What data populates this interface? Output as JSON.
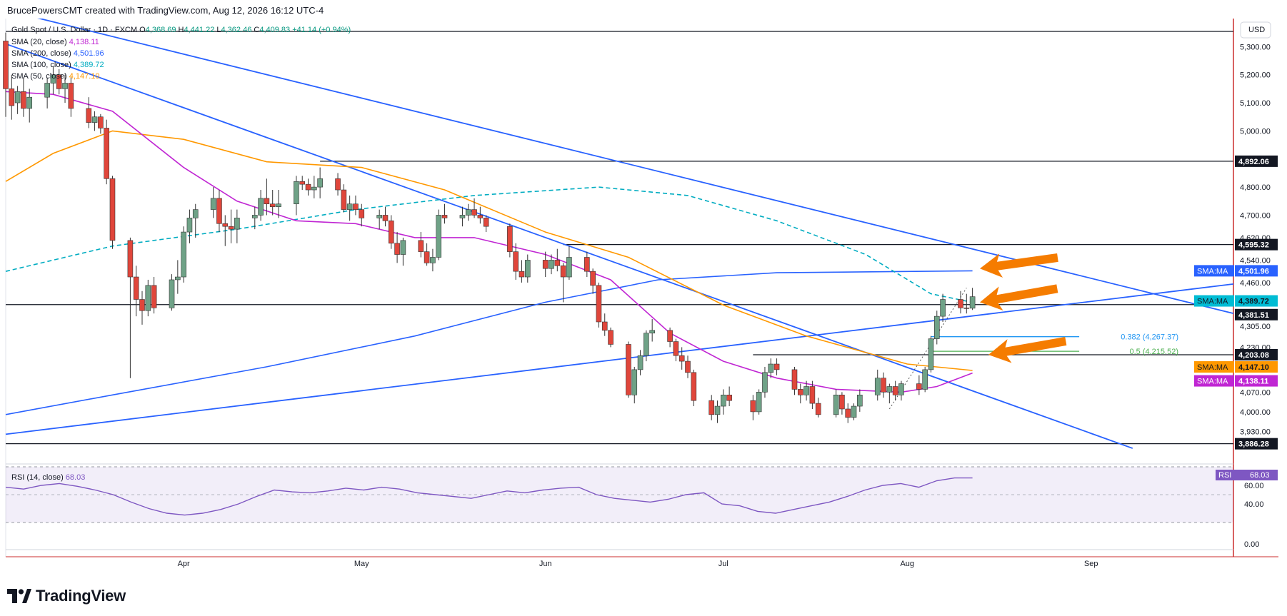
{
  "header": {
    "credit": "BrucePowersCMT created with TradingView.com, Aug 12, 2026 16:12 UTC-4"
  },
  "legend": {
    "symbol": "Gold Spot / U.S. Dollar · 1D · FXCM",
    "o_label": "O",
    "o_value": "4,368.69",
    "h_label": "H",
    "h_value": "4,441.22",
    "l_label": "L",
    "l_value": "4,362.46",
    "c_label": "C",
    "c_value": "4,409.83",
    "change": "+41.14 (+0.94%)",
    "indicators": [
      {
        "label": "SMA (20, close)",
        "value": "4,138.11",
        "color": "#c026d3"
      },
      {
        "label": "SMA (200, close)",
        "value": "4,501.96",
        "color": "#2962ff"
      },
      {
        "label": "SMA (100, close)",
        "value": "4,389.72",
        "color": "#00acc1"
      },
      {
        "label": "SMA (50, close)",
        "value": "4,147.10",
        "color": "#ff9800"
      }
    ]
  },
  "axis": {
    "currency": "USD",
    "price_ticks": [
      "5,300.00",
      "5,200.00",
      "5,100.00",
      "5,000.00",
      "4,800.00",
      "4,700.00",
      "4,620.00",
      "4,540.00",
      "4,460.00",
      "4,305.00",
      "4,230.00",
      "4,070.00",
      "4,000.00",
      "3,930.00"
    ],
    "months": [
      "Apr",
      "May",
      "Jun",
      "Jul",
      "Aug",
      "Sep"
    ],
    "rsi_ticks": [
      "60.00",
      "40.00",
      "0.00"
    ]
  },
  "price_tags": [
    {
      "text": "4,892.06",
      "style": "black"
    },
    {
      "text": "4,595.32",
      "style": "black"
    },
    {
      "text": "4,501.96",
      "style": "blue",
      "prefix": "SMA:MA"
    },
    {
      "text": "4,389.72",
      "style": "teal",
      "prefix": "SMA:MA"
    },
    {
      "text": "4,381.51",
      "style": "black"
    },
    {
      "text": "4,203.08",
      "style": "black"
    },
    {
      "text": "4,147.10",
      "style": "orange",
      "prefix": "SMA:MA"
    },
    {
      "text": "4,138.11",
      "style": "purple",
      "prefix": "SMA:MA"
    },
    {
      "text": "3,886.28",
      "style": "black"
    }
  ],
  "fib": [
    {
      "text": "0.382 (4,267.37)",
      "color": "#2196f3"
    },
    {
      "text": "0.5 (4,215.52)",
      "color": "#4caf50"
    }
  ],
  "rsi": {
    "label": "RSI (14, close)",
    "value": "68.03",
    "tag_prefix": "RSI",
    "color": "#7e57c2"
  },
  "brand": {
    "name": "TradingView"
  },
  "colors": {
    "up": "#6fa287",
    "down": "#e0463b",
    "sma20": "#c026d3",
    "sma50": "#ff9800",
    "sma100": "#00acc1",
    "sma200": "#2962ff",
    "trend": "#2962ff",
    "arrow": "#f57c00"
  },
  "chart_data": {
    "type": "candlestick",
    "x_range": [
      "2026-03-02",
      "2026-09-25"
    ],
    "y_range": [
      3860,
      5400
    ],
    "candles": [
      [
        "2026-03-02",
        5320,
        5350,
        5050,
        5150
      ],
      [
        "2026-03-03",
        5150,
        5200,
        5040,
        5090
      ],
      [
        "2026-03-04",
        5100,
        5160,
        5060,
        5140
      ],
      [
        "2026-03-05",
        5140,
        5190,
        5050,
        5080
      ],
      [
        "2026-03-06",
        5080,
        5150,
        5030,
        5120
      ],
      [
        "2026-03-09",
        5120,
        5190,
        5080,
        5170
      ],
      [
        "2026-03-10",
        5170,
        5230,
        5130,
        5200
      ],
      [
        "2026-03-11",
        5200,
        5220,
        5130,
        5150
      ],
      [
        "2026-03-12",
        5150,
        5200,
        5100,
        5170
      ],
      [
        "2026-03-13",
        5170,
        5190,
        5050,
        5080
      ],
      [
        "2026-03-16",
        5080,
        5120,
        5010,
        5030
      ],
      [
        "2026-03-17",
        5030,
        5070,
        5000,
        5050
      ],
      [
        "2026-03-18",
        5050,
        5060,
        4990,
        5010
      ],
      [
        "2026-03-19",
        5010,
        5040,
        4810,
        4830
      ],
      [
        "2026-03-20",
        4830,
        4840,
        4580,
        4610
      ],
      [
        "2026-03-23",
        4610,
        4620,
        4120,
        4480
      ],
      [
        "2026-03-24",
        4480,
        4520,
        4340,
        4400
      ],
      [
        "2026-03-25",
        4400,
        4430,
        4310,
        4360
      ],
      [
        "2026-03-26",
        4360,
        4470,
        4340,
        4450
      ],
      [
        "2026-03-27",
        4450,
        4480,
        4350,
        4370
      ],
      [
        "2026-03-30",
        4370,
        4490,
        4360,
        4470
      ],
      [
        "2026-03-31",
        4470,
        4540,
        4420,
        4480
      ],
      [
        "2026-04-01",
        4480,
        4660,
        4460,
        4640
      ],
      [
        "2026-04-02",
        4640,
        4720,
        4600,
        4690
      ],
      [
        "2026-04-03",
        4690,
        4740,
        4620,
        4720
      ],
      [
        "2026-04-06",
        4720,
        4800,
        4690,
        4760
      ],
      [
        "2026-04-07",
        4760,
        4790,
        4640,
        4670
      ],
      [
        "2026-04-08",
        4670,
        4700,
        4590,
        4660
      ],
      [
        "2026-04-09",
        4660,
        4720,
        4600,
        4650
      ],
      [
        "2026-04-10",
        4650,
        4720,
        4600,
        4690
      ],
      [
        "2026-04-13",
        4690,
        4730,
        4650,
        4700
      ],
      [
        "2026-04-14",
        4700,
        4790,
        4680,
        4760
      ],
      [
        "2026-04-15",
        4760,
        4830,
        4700,
        4740
      ],
      [
        "2026-04-16",
        4740,
        4790,
        4700,
        4730
      ],
      [
        "2026-04-17",
        4730,
        4790,
        4690,
        4740
      ],
      [
        "2026-04-20",
        4740,
        4840,
        4700,
        4820
      ],
      [
        "2026-04-21",
        4820,
        4840,
        4790,
        4810
      ],
      [
        "2026-04-22",
        4810,
        4830,
        4770,
        4790
      ],
      [
        "2026-04-23",
        4790,
        4840,
        4760,
        4800
      ],
      [
        "2026-04-24",
        4800,
        4870,
        4760,
        4830
      ],
      [
        "2026-04-27",
        4830,
        4850,
        4770,
        4790
      ],
      [
        "2026-04-28",
        4790,
        4810,
        4710,
        4720
      ],
      [
        "2026-04-29",
        4720,
        4770,
        4680,
        4740
      ],
      [
        "2026-04-30",
        4740,
        4770,
        4700,
        4720
      ],
      [
        "2026-05-01",
        4720,
        4740,
        4660,
        4690
      ],
      [
        "2026-05-04",
        4690,
        4720,
        4650,
        4700
      ],
      [
        "2026-05-05",
        4700,
        4730,
        4660,
        4680
      ],
      [
        "2026-05-06",
        4680,
        4700,
        4580,
        4600
      ],
      [
        "2026-05-07",
        4600,
        4640,
        4530,
        4560
      ],
      [
        "2026-05-08",
        4560,
        4620,
        4520,
        4610
      ],
      [
        "2026-05-11",
        4610,
        4640,
        4550,
        4570
      ],
      [
        "2026-05-12",
        4570,
        4600,
        4520,
        4530
      ],
      [
        "2026-05-13",
        4530,
        4580,
        4500,
        4550
      ],
      [
        "2026-05-14",
        4550,
        4720,
        4540,
        4700
      ],
      [
        "2026-05-15",
        4700,
        4740,
        4670,
        4690
      ],
      [
        "2026-05-18",
        4690,
        4730,
        4660,
        4700
      ],
      [
        "2026-05-19",
        4700,
        4740,
        4680,
        4720
      ],
      [
        "2026-05-20",
        4720,
        4760,
        4690,
        4700
      ],
      [
        "2026-05-21",
        4700,
        4730,
        4670,
        4690
      ],
      [
        "2026-05-22",
        4690,
        4700,
        4640,
        4660
      ],
      [
        "2026-05-26",
        4660,
        4670,
        4550,
        4570
      ],
      [
        "2026-05-27",
        4570,
        4600,
        4470,
        4500
      ],
      [
        "2026-05-28",
        4500,
        4540,
        4460,
        4480
      ],
      [
        "2026-05-29",
        4480,
        4560,
        4460,
        4540
      ],
      [
        "2026-06-01",
        4540,
        4570,
        4480,
        4510
      ],
      [
        "2026-06-02",
        4510,
        4560,
        4490,
        4540
      ],
      [
        "2026-06-03",
        4540,
        4580,
        4500,
        4520
      ],
      [
        "2026-06-04",
        4520,
        4530,
        4390,
        4480
      ],
      [
        "2026-06-05",
        4480,
        4590,
        4470,
        4550
      ],
      [
        "2026-06-08",
        4550,
        4570,
        4480,
        4500
      ],
      [
        "2026-06-09",
        4500,
        4510,
        4420,
        4450
      ],
      [
        "2026-06-10",
        4450,
        4460,
        4300,
        4320
      ],
      [
        "2026-06-11",
        4320,
        4350,
        4270,
        4290
      ],
      [
        "2026-06-12",
        4290,
        4300,
        4230,
        4240
      ],
      [
        "2026-06-15",
        4240,
        4250,
        4050,
        4060
      ],
      [
        "2026-06-16",
        4060,
        4160,
        4030,
        4150
      ],
      [
        "2026-06-17",
        4150,
        4220,
        4130,
        4200
      ],
      [
        "2026-06-18",
        4200,
        4290,
        4180,
        4280
      ],
      [
        "2026-06-19",
        4280,
        4330,
        4250,
        4290
      ],
      [
        "2026-06-22",
        4290,
        4300,
        4230,
        4250
      ],
      [
        "2026-06-23",
        4250,
        4260,
        4180,
        4200
      ],
      [
        "2026-06-24",
        4200,
        4230,
        4150,
        4180
      ],
      [
        "2026-06-25",
        4180,
        4200,
        4120,
        4140
      ],
      [
        "2026-06-26",
        4140,
        4150,
        4020,
        4040
      ],
      [
        "2026-06-29",
        4040,
        4060,
        3970,
        3990
      ],
      [
        "2026-06-30",
        3990,
        4040,
        3960,
        4020
      ],
      [
        "2026-07-01",
        4020,
        4080,
        3990,
        4060
      ],
      [
        "2026-07-02",
        4060,
        4090,
        4020,
        4040
      ],
      [
        "2026-07-06",
        4040,
        4060,
        3970,
        4000
      ],
      [
        "2026-07-07",
        4000,
        4080,
        3990,
        4070
      ],
      [
        "2026-07-08",
        4070,
        4160,
        4050,
        4140
      ],
      [
        "2026-07-09",
        4140,
        4190,
        4120,
        4170
      ],
      [
        "2026-07-10",
        4170,
        4190,
        4130,
        4150
      ],
      [
        "2026-07-13",
        4150,
        4160,
        4060,
        4080
      ],
      [
        "2026-07-14",
        4080,
        4100,
        4030,
        4060
      ],
      [
        "2026-07-15",
        4060,
        4110,
        4040,
        4090
      ],
      [
        "2026-07-16",
        4090,
        4110,
        4010,
        4030
      ],
      [
        "2026-07-17",
        4030,
        4050,
        3980,
        3990
      ],
      [
        "2026-07-20",
        3990,
        4080,
        3980,
        4060
      ],
      [
        "2026-07-21",
        4060,
        4070,
        3990,
        4010
      ],
      [
        "2026-07-22",
        4010,
        4030,
        3960,
        3980
      ],
      [
        "2026-07-23",
        3980,
        4030,
        3970,
        4020
      ],
      [
        "2026-07-24",
        4020,
        4080,
        4000,
        4060
      ],
      [
        "2026-07-27",
        4060,
        4150,
        4040,
        4120
      ],
      [
        "2026-07-28",
        4120,
        4140,
        4050,
        4070
      ],
      [
        "2026-07-29",
        4070,
        4100,
        4030,
        4090
      ],
      [
        "2026-07-30",
        4090,
        4110,
        4040,
        4060
      ],
      [
        "2026-07-31",
        4060,
        4110,
        4040,
        4100
      ],
      [
        "2026-08-03",
        4100,
        4130,
        4060,
        4080
      ],
      [
        "2026-08-04",
        4080,
        4160,
        4070,
        4150
      ],
      [
        "2026-08-05",
        4150,
        4270,
        4140,
        4260
      ],
      [
        "2026-08-06",
        4260,
        4360,
        4240,
        4340
      ],
      [
        "2026-08-07",
        4340,
        4420,
        4320,
        4400
      ],
      [
        "2026-08-10",
        4400,
        4430,
        4350,
        4370
      ],
      [
        "2026-08-11",
        4370,
        4420,
        4350,
        4368.69
      ],
      [
        "2026-08-12",
        4368.69,
        4441.22,
        4362.46,
        4409.83
      ]
    ],
    "sma20": [
      [
        "2026-03-02",
        5140
      ],
      [
        "2026-03-10",
        5130
      ],
      [
        "2026-03-20",
        5070
      ],
      [
        "2026-04-01",
        4870
      ],
      [
        "2026-04-10",
        4750
      ],
      [
        "2026-04-20",
        4680
      ],
      [
        "2026-04-30",
        4670
      ],
      [
        "2026-05-10",
        4620
      ],
      [
        "2026-05-20",
        4620
      ],
      [
        "2026-06-01",
        4560
      ],
      [
        "2026-06-12",
        4470
      ],
      [
        "2026-06-22",
        4280
      ],
      [
        "2026-07-01",
        4180
      ],
      [
        "2026-07-10",
        4120
      ],
      [
        "2026-07-20",
        4080
      ],
      [
        "2026-07-31",
        4070
      ],
      [
        "2026-08-06",
        4090
      ],
      [
        "2026-08-12",
        4138.11
      ]
    ],
    "sma50": [
      [
        "2026-03-02",
        4820
      ],
      [
        "2026-03-10",
        4920
      ],
      [
        "2026-03-20",
        5000
      ],
      [
        "2026-04-01",
        4970
      ],
      [
        "2026-04-15",
        4890
      ],
      [
        "2026-05-01",
        4870
      ],
      [
        "2026-05-15",
        4790
      ],
      [
        "2026-06-01",
        4640
      ],
      [
        "2026-06-15",
        4550
      ],
      [
        "2026-07-01",
        4380
      ],
      [
        "2026-07-15",
        4270
      ],
      [
        "2026-08-01",
        4170
      ],
      [
        "2026-08-12",
        4147.1
      ]
    ],
    "sma100": [
      [
        "2026-03-02",
        4500
      ],
      [
        "2026-03-20",
        4590
      ],
      [
        "2026-04-10",
        4650
      ],
      [
        "2026-04-30",
        4720
      ],
      [
        "2026-05-20",
        4770
      ],
      [
        "2026-06-10",
        4800
      ],
      [
        "2026-06-25",
        4770
      ],
      [
        "2026-07-10",
        4680
      ],
      [
        "2026-07-25",
        4560
      ],
      [
        "2026-08-05",
        4420
      ],
      [
        "2026-08-12",
        4389.72
      ]
    ],
    "sma200": [
      [
        "2026-03-02",
        3990
      ],
      [
        "2026-03-20",
        4060
      ],
      [
        "2026-04-15",
        4160
      ],
      [
        "2026-05-10",
        4270
      ],
      [
        "2026-06-01",
        4390
      ],
      [
        "2026-06-20",
        4470
      ],
      [
        "2026-07-10",
        4495
      ],
      [
        "2026-08-12",
        4501.96
      ]
    ],
    "horizontal_levels": [
      4892.06,
      4595.32,
      4381.51,
      4203.08,
      3886.28
    ],
    "fib_levels": [
      {
        "level": 0.382,
        "price": 4267.37
      },
      {
        "level": 0.5,
        "price": 4215.52
      }
    ],
    "rsi_latest": 68.03,
    "rsi": [
      58,
      56,
      60,
      62,
      59,
      55,
      50,
      42,
      35,
      30,
      28,
      30,
      34,
      40,
      48,
      55,
      53,
      52,
      54,
      57,
      55,
      58,
      56,
      52,
      50,
      48,
      46,
      50,
      54,
      52,
      55,
      57,
      58,
      50,
      46,
      44,
      42,
      45,
      50,
      52,
      40,
      38,
      32,
      30,
      34,
      38,
      42,
      48,
      55,
      60,
      62,
      58,
      65,
      68,
      68.03
    ]
  }
}
